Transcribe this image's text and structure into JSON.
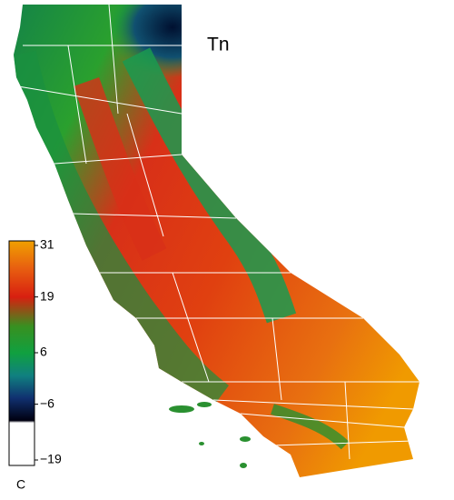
{
  "title": "Tn",
  "colorbar": {
    "lim": [
      -19,
      31
    ],
    "ticks": [
      31,
      19,
      6,
      {
        "value": -6,
        "label": "−6"
      },
      {
        "value": -19,
        "label": "−19"
      }
    ],
    "unit": "C"
  }
}
